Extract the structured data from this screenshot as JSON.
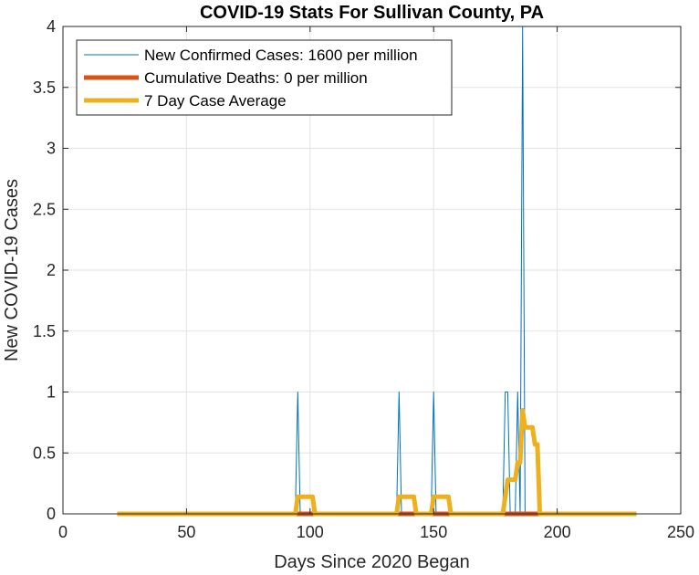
{
  "chart_data": {
    "type": "line",
    "title": "COVID-19 Stats For Sullivan County, PA",
    "xlabel": "Days Since 2020 Began",
    "ylabel": "New COVID-19 Cases",
    "xlim": [
      0,
      250
    ],
    "ylim": [
      0,
      4
    ],
    "xticks": [
      0,
      50,
      100,
      150,
      200,
      250
    ],
    "yticks": [
      0,
      0.5,
      1,
      1.5,
      2,
      2.5,
      3,
      3.5,
      4
    ],
    "xtick_labels": [
      "0",
      "50",
      "100",
      "150",
      "200",
      "250"
    ],
    "ytick_labels": [
      "0",
      "0.5",
      "1",
      "1.5",
      "2",
      "2.5",
      "3",
      "3.5",
      "4"
    ],
    "grid": true,
    "legend_position": "top-left",
    "series": [
      {
        "name": "New Confirmed Cases: 1600 per million",
        "color": "#0072BD",
        "width": 1,
        "points": [
          [
            22,
            0
          ],
          [
            94,
            0
          ],
          [
            95,
            1
          ],
          [
            96,
            0
          ],
          [
            135,
            0
          ],
          [
            136,
            1
          ],
          [
            137,
            0
          ],
          [
            149,
            0
          ],
          [
            150,
            1
          ],
          [
            151,
            0
          ],
          [
            178,
            0
          ],
          [
            179,
            1
          ],
          [
            180,
            1
          ],
          [
            181,
            0
          ],
          [
            183,
            0
          ],
          [
            184,
            1
          ],
          [
            185,
            0
          ],
          [
            186,
            4
          ],
          [
            187,
            0
          ],
          [
            232,
            0
          ]
        ]
      },
      {
        "name": "Cumulative Deaths: 0 per million",
        "color": "#D95319",
        "width": 5,
        "points": [
          [
            22,
            0
          ],
          [
            232,
            0
          ]
        ]
      },
      {
        "name": "7 Day Case Average",
        "color": "#EDB120",
        "width": 5,
        "points": [
          [
            22,
            0
          ],
          [
            94,
            0
          ],
          [
            95,
            0.14
          ],
          [
            101,
            0.14
          ],
          [
            102,
            0
          ],
          [
            135,
            0
          ],
          [
            136,
            0.14
          ],
          [
            142,
            0.14
          ],
          [
            143,
            0
          ],
          [
            149,
            0
          ],
          [
            150,
            0.14
          ],
          [
            156,
            0.14
          ],
          [
            157,
            0
          ],
          [
            178,
            0
          ],
          [
            179,
            0.14
          ],
          [
            180,
            0.28
          ],
          [
            182,
            0.28
          ],
          [
            183,
            0.28
          ],
          [
            184,
            0.42
          ],
          [
            185,
            0.42
          ],
          [
            186,
            0.85
          ],
          [
            187,
            0.71
          ],
          [
            190,
            0.71
          ],
          [
            191,
            0.57
          ],
          [
            192,
            0.57
          ],
          [
            193,
            0
          ],
          [
            232,
            0
          ]
        ]
      }
    ]
  }
}
